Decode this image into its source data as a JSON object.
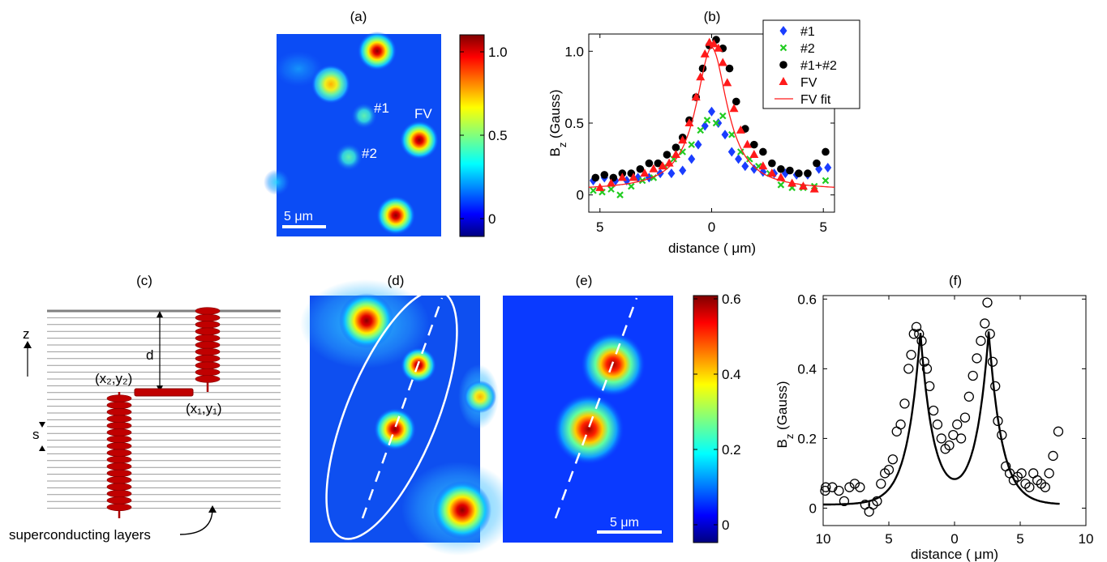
{
  "colors": {
    "diamond_series": "#1a3dff",
    "cross_series": "#22cc22",
    "dot_series": "#000000",
    "triangle_series": "#ff1a1a",
    "fit_line": "#ff1a1a",
    "colormap": "jet",
    "panel_f_line": "#000000"
  },
  "panel_a": {
    "label": "(a)",
    "colorbar_ticks": [
      "1.0",
      "0.5",
      "0"
    ],
    "annotations": [
      "#1",
      "#2",
      "FV"
    ],
    "scalebar": "5 μm"
  },
  "panel_c": {
    "label": "(c)",
    "z_label": "z",
    "d_label": "d",
    "s_label": "s",
    "point2_label": "(x₂,y₂)",
    "point1_label": "(x₁,y₁)",
    "caption": "superconducting layers"
  },
  "panel_d": {
    "label": "(d)"
  },
  "panel_e": {
    "label": "(e)",
    "colorbar_ticks": [
      "0.6",
      "0.4",
      "0.2",
      "0"
    ],
    "scalebar": "5 μm"
  },
  "chart_data": [
    {
      "panel": "(b)",
      "type": "scatter",
      "xlabel": "distance ( μm)",
      "ylabel": "B_z (Gauss)",
      "xtick_labels": [
        "5",
        "0",
        "5"
      ],
      "ytick_labels": [
        "0",
        "0.5",
        "1.0"
      ],
      "xlim": [
        -5.5,
        5.5
      ],
      "ylim": [
        -0.12,
        1.12
      ],
      "legend_position": "top-right",
      "series": [
        {
          "name": "#1",
          "marker": "diamond",
          "x": [
            -5.3,
            -4.8,
            -4.3,
            -3.8,
            -3.3,
            -2.8,
            -2.3,
            -1.8,
            -1.3,
            -0.9,
            -0.6,
            -0.3,
            0.0,
            0.3,
            0.6,
            0.9,
            1.2,
            1.5,
            1.9,
            2.3,
            2.8,
            3.3,
            3.8,
            4.3,
            4.8,
            5.2
          ],
          "y": [
            0.1,
            0.12,
            0.1,
            0.1,
            0.12,
            0.12,
            0.15,
            0.15,
            0.17,
            0.25,
            0.35,
            0.48,
            0.58,
            0.5,
            0.42,
            0.3,
            0.25,
            0.2,
            0.18,
            0.16,
            0.15,
            0.15,
            0.14,
            0.14,
            0.18,
            0.19
          ]
        },
        {
          "name": "#2",
          "marker": "cross",
          "x": [
            -5.3,
            -4.9,
            -4.5,
            -4.1,
            -3.6,
            -3.1,
            -2.6,
            -2.1,
            -1.7,
            -1.3,
            -0.9,
            -0.5,
            -0.2,
            0.2,
            0.5,
            0.9,
            1.3,
            1.7,
            2.1,
            2.6,
            3.1,
            3.6,
            4.1,
            4.6,
            5.1
          ],
          "y": [
            0.03,
            0.02,
            0.04,
            0.0,
            0.06,
            0.1,
            0.12,
            0.2,
            0.25,
            0.3,
            0.35,
            0.45,
            0.52,
            0.5,
            0.55,
            0.42,
            0.3,
            0.25,
            0.2,
            0.15,
            0.07,
            0.05,
            0.05,
            0.06,
            0.1
          ]
        },
        {
          "name": "#1+#2",
          "marker": "dot",
          "x": [
            -5.2,
            -4.8,
            -4.4,
            -4.0,
            -3.6,
            -3.2,
            -2.8,
            -2.4,
            -2.0,
            -1.6,
            -1.3,
            -1.0,
            -0.7,
            -0.4,
            -0.1,
            0.2,
            0.5,
            0.8,
            1.1,
            1.5,
            1.9,
            2.3,
            2.7,
            3.1,
            3.5,
            3.9,
            4.3,
            4.7,
            5.1
          ],
          "y": [
            0.12,
            0.14,
            0.12,
            0.15,
            0.15,
            0.18,
            0.22,
            0.22,
            0.28,
            0.33,
            0.4,
            0.52,
            0.68,
            0.88,
            1.04,
            1.08,
            1.02,
            0.88,
            0.65,
            0.46,
            0.35,
            0.3,
            0.22,
            0.18,
            0.17,
            0.15,
            0.15,
            0.22,
            0.3
          ]
        },
        {
          "name": "FV",
          "marker": "triangle",
          "x": [
            -5.0,
            -4.5,
            -4.0,
            -3.5,
            -3.0,
            -2.6,
            -2.2,
            -1.9,
            -1.6,
            -1.3,
            -1.0,
            -0.7,
            -0.5,
            -0.3,
            -0.1,
            0.1,
            0.3,
            0.5,
            0.7,
            1.0,
            1.3,
            1.6,
            1.9,
            2.3,
            2.7,
            3.1,
            3.6,
            4.1,
            4.6
          ],
          "y": [
            0.05,
            0.08,
            0.12,
            0.12,
            0.15,
            0.18,
            0.2,
            0.22,
            0.28,
            0.38,
            0.5,
            0.68,
            0.82,
            0.98,
            1.06,
            1.05,
            1.02,
            0.92,
            0.78,
            0.6,
            0.45,
            0.35,
            0.28,
            0.2,
            0.15,
            0.12,
            0.08,
            0.06,
            0.04
          ]
        },
        {
          "name": "FV fit",
          "marker": "line",
          "center": 0.0,
          "amplitude": 1.07,
          "width": 0.85
        }
      ]
    },
    {
      "panel": "(f)",
      "type": "scatter",
      "xlabel": "distance ( μm)",
      "ylabel": "B_z (Gauss)",
      "xtick_labels": [
        "10",
        "5",
        "0",
        "5",
        "10"
      ],
      "ytick_labels": [
        "0",
        "0.2",
        "0.4",
        "0.6"
      ],
      "xlim": [
        -10,
        10
      ],
      "ylim": [
        -0.05,
        0.61
      ],
      "series": [
        {
          "name": "data",
          "marker": "open-circle",
          "x": [
            -10.3,
            -9.8,
            -9.3,
            -8.8,
            -8.4,
            -8.0,
            -7.6,
            -7.2,
            -6.8,
            -6.5,
            -6.2,
            -5.9,
            -5.6,
            -5.3,
            -5.0,
            -4.7,
            -4.4,
            -4.1,
            -3.8,
            -3.5,
            -3.3,
            -3.1,
            -2.9,
            -2.7,
            -2.5,
            -2.3,
            -2.1,
            -1.9,
            -1.6,
            -1.3,
            -1.0,
            -0.7,
            -0.4,
            -0.1,
            0.2,
            0.5,
            0.8,
            1.1,
            1.4,
            1.7,
            2.0,
            2.3,
            2.5,
            2.7,
            2.9,
            3.1,
            3.3,
            3.6,
            3.9,
            4.2,
            4.5,
            4.8,
            5.1,
            5.4,
            5.7,
            6.0,
            6.3,
            6.6,
            6.9,
            7.2,
            7.5,
            7.9
          ],
          "y": [
            0.05,
            0.06,
            0.06,
            0.05,
            0.02,
            0.06,
            0.07,
            0.06,
            0.01,
            -0.01,
            0.01,
            0.02,
            0.07,
            0.1,
            0.11,
            0.14,
            0.22,
            0.24,
            0.3,
            0.4,
            0.44,
            0.5,
            0.52,
            0.5,
            0.48,
            0.42,
            0.4,
            0.35,
            0.28,
            0.24,
            0.2,
            0.17,
            0.18,
            0.21,
            0.24,
            0.2,
            0.26,
            0.32,
            0.38,
            0.43,
            0.48,
            0.53,
            0.59,
            0.5,
            0.42,
            0.35,
            0.25,
            0.21,
            0.12,
            0.1,
            0.08,
            0.09,
            0.1,
            0.07,
            0.06,
            0.1,
            0.08,
            0.07,
            0.06,
            0.1,
            0.15,
            0.22
          ]
        },
        {
          "name": "fit",
          "marker": "line",
          "peaks": [
            -2.6,
            2.6
          ],
          "amplitude": 0.52,
          "width": 1.0
        }
      ]
    }
  ]
}
